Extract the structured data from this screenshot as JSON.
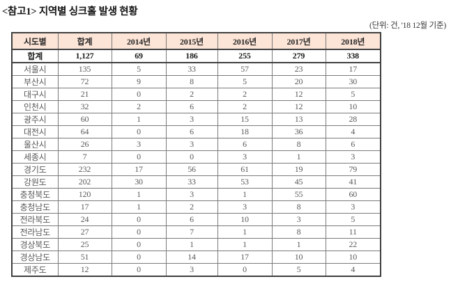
{
  "title": "<참고1> 지역별 싱크홀 발생 현황",
  "unit_note": "(단위: 건, '18 12월 기준)",
  "colors": {
    "header_bg": "#fce4d6",
    "border_dark": "#3f3f3f",
    "border_light": "#7a7a7a",
    "text_dark": "#1a1a1a",
    "text_muted": "#595959"
  },
  "table": {
    "columns": [
      "시도별",
      "합계",
      "2014년",
      "2015년",
      "2016년",
      "2017년",
      "2018년"
    ],
    "total_row": {
      "label": "합계",
      "values": [
        "1,127",
        "69",
        "186",
        "255",
        "279",
        "338"
      ]
    },
    "rows": [
      {
        "label": "서울시",
        "values": [
          "135",
          "5",
          "33",
          "57",
          "23",
          "17"
        ]
      },
      {
        "label": "부산시",
        "values": [
          "72",
          "9",
          "8",
          "5",
          "20",
          "30"
        ]
      },
      {
        "label": "대구시",
        "values": [
          "21",
          "0",
          "2",
          "2",
          "12",
          "5"
        ]
      },
      {
        "label": "인천시",
        "values": [
          "32",
          "2",
          "6",
          "2",
          "12",
          "10"
        ]
      },
      {
        "label": "광주시",
        "values": [
          "60",
          "1",
          "3",
          "15",
          "13",
          "28"
        ]
      },
      {
        "label": "대전시",
        "values": [
          "64",
          "0",
          "6",
          "18",
          "36",
          "4"
        ]
      },
      {
        "label": "울산시",
        "values": [
          "26",
          "3",
          "3",
          "6",
          "8",
          "6"
        ]
      },
      {
        "label": "세종시",
        "values": [
          "7",
          "0",
          "0",
          "3",
          "1",
          "3"
        ]
      },
      {
        "label": "경기도",
        "values": [
          "232",
          "17",
          "56",
          "61",
          "19",
          "79"
        ]
      },
      {
        "label": "강원도",
        "values": [
          "202",
          "30",
          "33",
          "53",
          "45",
          "41"
        ]
      },
      {
        "label": "충청북도",
        "values": [
          "120",
          "1",
          "3",
          "1",
          "55",
          "60"
        ]
      },
      {
        "label": "충청남도",
        "values": [
          "17",
          "1",
          "2",
          "3",
          "8",
          "3"
        ]
      },
      {
        "label": "전라북도",
        "values": [
          "24",
          "0",
          "6",
          "10",
          "3",
          "5"
        ]
      },
      {
        "label": "전라남도",
        "values": [
          "27",
          "0",
          "7",
          "1",
          "8",
          "11"
        ]
      },
      {
        "label": "경상북도",
        "values": [
          "25",
          "0",
          "1",
          "1",
          "1",
          "22"
        ]
      },
      {
        "label": "경상남도",
        "values": [
          "51",
          "0",
          "14",
          "17",
          "10",
          "10"
        ]
      },
      {
        "label": "제주도",
        "values": [
          "12",
          "0",
          "3",
          "0",
          "5",
          "4"
        ]
      }
    ]
  }
}
